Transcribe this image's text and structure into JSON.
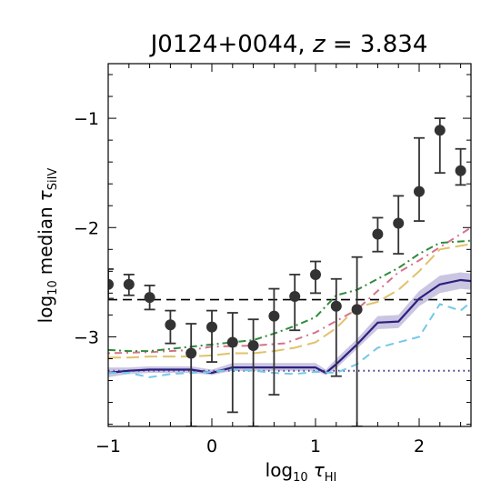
{
  "chart_data": {
    "type": "scatter",
    "title": "J0124+0044, z = 3.834",
    "title_parts": {
      "name": "J0124+0044, ",
      "var": "z",
      "eq": " = 3.834"
    },
    "xlabel": {
      "prefix": "log",
      "base": "10",
      "symbol": "τ",
      "sub": "HI"
    },
    "ylabel": {
      "prefix": "log",
      "base": "10",
      "word": "median",
      "symbol": "τ",
      "sub": "SiIV"
    },
    "xlim": [
      -1,
      2.5
    ],
    "ylim": [
      -3.82,
      -0.5
    ],
    "xticks": [
      -1,
      0,
      1,
      2
    ],
    "xtick_labels": [
      "−1",
      "0",
      "1",
      "2"
    ],
    "yticks": [
      -3,
      -2,
      -1
    ],
    "ytick_labels": [
      "−3",
      "−2",
      "−1"
    ],
    "grid": false,
    "legend": "none",
    "observed": {
      "color": "#333333",
      "points": [
        {
          "x": -1.0,
          "y": -2.52,
          "ylo": -2.65,
          "yhi": -2.38
        },
        {
          "x": -0.8,
          "y": -2.52,
          "ylo": -2.62,
          "yhi": -2.43
        },
        {
          "x": -0.6,
          "y": -2.64,
          "ylo": -2.75,
          "yhi": -2.53
        },
        {
          "x": -0.4,
          "y": -2.89,
          "ylo": -3.06,
          "yhi": -2.76
        },
        {
          "x": -0.2,
          "y": -3.15,
          "ylo": -3.82,
          "yhi": -2.88
        },
        {
          "x": 0.0,
          "y": -2.91,
          "ylo": -3.23,
          "yhi": -2.76
        },
        {
          "x": 0.2,
          "y": -3.05,
          "ylo": -3.69,
          "yhi": -2.78
        },
        {
          "x": 0.4,
          "y": -3.08,
          "ylo": -3.82,
          "yhi": -2.84
        },
        {
          "x": 0.6,
          "y": -2.81,
          "ylo": -3.53,
          "yhi": -2.56
        },
        {
          "x": 0.8,
          "y": -2.63,
          "ylo": -2.94,
          "yhi": -2.43
        },
        {
          "x": 1.0,
          "y": -2.43,
          "ylo": -2.6,
          "yhi": -2.31
        },
        {
          "x": 1.2,
          "y": -2.72,
          "ylo": -3.36,
          "yhi": -2.47
        },
        {
          "x": 1.4,
          "y": -2.75,
          "ylo": -3.82,
          "yhi": -2.27
        },
        {
          "x": 1.6,
          "y": -2.06,
          "ylo": -2.22,
          "yhi": -1.91
        },
        {
          "x": 1.8,
          "y": -1.96,
          "ylo": -2.24,
          "yhi": -1.71
        },
        {
          "x": 2.0,
          "y": -1.67,
          "ylo": -1.94,
          "yhi": -1.18
        },
        {
          "x": 2.2,
          "y": -1.11,
          "ylo": -1.5,
          "yhi": -1.0
        },
        {
          "x": 2.4,
          "y": -1.48,
          "ylo": -1.61,
          "yhi": -1.28
        }
      ]
    },
    "reference_lines": [
      {
        "y": -2.66,
        "color": "#000000",
        "dash": "10,6",
        "width": 1.6
      },
      {
        "y": -3.31,
        "color": "#3d2a8c",
        "dash": "1.5,4",
        "width": 2
      }
    ],
    "series": [
      {
        "color": "#2c1f7e",
        "dash": "",
        "width": 2.2,
        "x": [
          -1.0,
          -0.8,
          -0.6,
          -0.4,
          -0.2,
          0.0,
          0.2,
          0.4,
          0.6,
          0.8,
          1.0,
          1.1,
          1.2,
          1.4,
          1.6,
          1.8,
          2.0,
          2.2,
          2.4,
          2.5
        ],
        "y": [
          -3.33,
          -3.31,
          -3.3,
          -3.3,
          -3.3,
          -3.33,
          -3.28,
          -3.28,
          -3.28,
          -3.28,
          -3.28,
          -3.33,
          -3.25,
          -3.07,
          -2.87,
          -2.86,
          -2.65,
          -2.52,
          -2.48,
          -2.49
        ],
        "band_lo": [
          -3.37,
          -3.34,
          -3.33,
          -3.33,
          -3.33,
          -3.35,
          -3.31,
          -3.31,
          -3.31,
          -3.31,
          -3.31,
          -3.35,
          -3.29,
          -3.11,
          -2.93,
          -2.92,
          -2.72,
          -2.6,
          -2.56,
          -2.57
        ],
        "band_hi": [
          -3.28,
          -3.28,
          -3.27,
          -3.27,
          -3.27,
          -3.3,
          -3.24,
          -3.24,
          -3.24,
          -3.24,
          -3.24,
          -3.3,
          -3.2,
          -3.02,
          -2.81,
          -2.8,
          -2.58,
          -2.44,
          -2.41,
          -2.42
        ],
        "band_color": "#8a80bf"
      },
      {
        "color": "#74c7e8",
        "dash": "9,6",
        "width": 2,
        "x": [
          -1.0,
          -0.8,
          -0.6,
          -0.4,
          -0.2,
          0.0,
          0.2,
          0.4,
          0.6,
          0.8,
          1.0,
          1.2,
          1.4,
          1.6,
          1.8,
          2.0,
          2.2,
          2.4,
          2.5
        ],
        "y": [
          -3.33,
          -3.33,
          -3.37,
          -3.34,
          -3.33,
          -3.32,
          -3.3,
          -3.31,
          -3.33,
          -3.34,
          -3.32,
          -3.33,
          -3.25,
          -3.1,
          -3.05,
          -3.0,
          -2.7,
          -2.76,
          -2.68
        ]
      },
      {
        "color": "#d6728c",
        "dash": "2,5,8,5",
        "width": 2,
        "x": [
          -1.0,
          -0.6,
          -0.2,
          0.0,
          0.4,
          0.7,
          1.0,
          1.4,
          1.8,
          2.0,
          2.2,
          2.5
        ],
        "y": [
          -3.15,
          -3.14,
          -3.12,
          -3.09,
          -3.08,
          -3.06,
          -2.96,
          -2.75,
          -2.41,
          -2.3,
          -2.18,
          -2.0
        ]
      },
      {
        "color": "#2e8b3a",
        "dash": "8,4,2,4",
        "width": 2,
        "x": [
          -1.0,
          -0.8,
          -0.6,
          -0.4,
          -0.2,
          0.0,
          0.2,
          0.4,
          0.6,
          0.8,
          1.0,
          1.2,
          1.4,
          1.6,
          1.8,
          2.0,
          2.2,
          2.5
        ],
        "y": [
          -3.12,
          -3.13,
          -3.13,
          -3.11,
          -3.09,
          -3.07,
          -3.05,
          -3.03,
          -2.97,
          -2.9,
          -2.82,
          -2.62,
          -2.57,
          -2.47,
          -2.37,
          -2.24,
          -2.14,
          -2.12
        ]
      },
      {
        "color": "#e0c26a",
        "dash": "14,6",
        "width": 2,
        "x": [
          -1.0,
          -0.8,
          -0.6,
          -0.4,
          -0.2,
          0.0,
          0.2,
          0.4,
          0.6,
          0.8,
          1.0,
          1.2,
          1.4,
          1.6,
          1.8,
          2.0,
          2.2,
          2.5
        ],
        "y": [
          -3.19,
          -3.19,
          -3.18,
          -3.18,
          -3.18,
          -3.17,
          -3.15,
          -3.15,
          -3.13,
          -3.1,
          -3.05,
          -2.92,
          -2.73,
          -2.68,
          -2.57,
          -2.4,
          -2.2,
          -2.15
        ]
      }
    ]
  }
}
